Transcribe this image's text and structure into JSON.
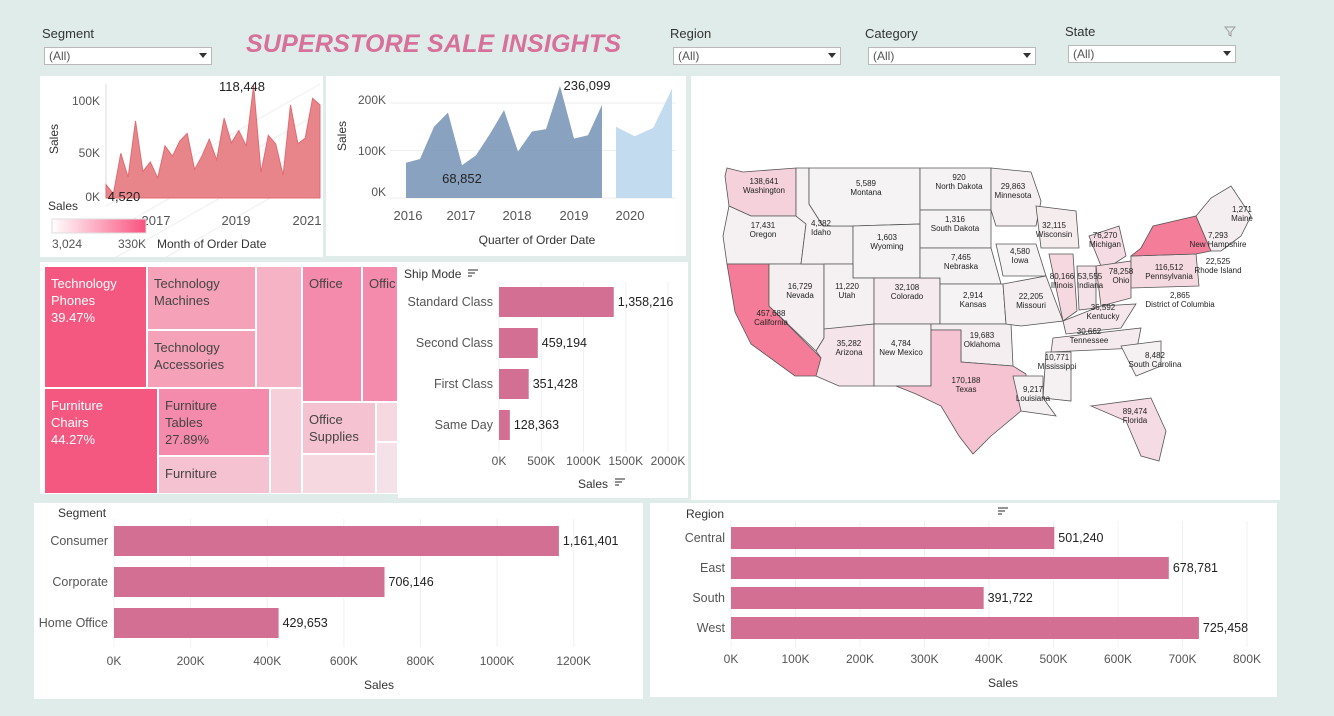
{
  "title": "SUPERSTORE SALE INSIGHTS",
  "filters": [
    {
      "label": "Segment",
      "value": "(All)"
    },
    {
      "label": "Region",
      "value": "(All)"
    },
    {
      "label": "Category",
      "value": "(All)"
    },
    {
      "label": "State",
      "value": "(All)"
    }
  ],
  "monthly": {
    "ylabel": "Sales",
    "xlabel": "Month of Order Date",
    "yticks": [
      "100K",
      "50K",
      "0K"
    ],
    "xticks": [
      "2017",
      "2019",
      "2021"
    ],
    "max_label": "118,448",
    "min_label": "4,520",
    "legend_title": "Sales",
    "legend_min": "3,024",
    "legend_max": "330K",
    "color": "#e8858a"
  },
  "quarterly": {
    "ylabel": "Sales",
    "xlabel": "Quarter of Order Date",
    "yticks": [
      "200K",
      "100K",
      "0K"
    ],
    "xticks": [
      "2016",
      "2017",
      "2018",
      "2019",
      "2020"
    ],
    "max_label": "236,099",
    "min_label": "68,852",
    "color": "#7492b5",
    "forecast_color": "#c2dbef"
  },
  "treemap": {
    "cells": [
      {
        "category": "Technology",
        "sub": "Phones",
        "pct": "39.47%"
      },
      {
        "category": "Technology",
        "sub": "Machines"
      },
      {
        "category": "Technology",
        "sub": "Accessories"
      },
      {
        "category": "Office",
        "sub": ""
      },
      {
        "category": "Offic",
        "sub": ""
      },
      {
        "category": "Furniture",
        "sub": "Chairs",
        "pct": "44.27%"
      },
      {
        "category": "Furniture",
        "sub": "Tables",
        "pct": "27.89%"
      },
      {
        "category": "Furniture",
        "sub": ""
      },
      {
        "category": "Office",
        "sub": "Supplies"
      }
    ]
  },
  "ship_mode": {
    "header": "Ship Mode",
    "axis_title": "Sales",
    "xticks": [
      "0K",
      "500K",
      "1000K",
      "1500K",
      "2000K"
    ],
    "color": "#d46f94"
  },
  "map": {
    "states": [
      {
        "name": "Washington",
        "value": "138,641"
      },
      {
        "name": "Oregon",
        "value": "17,431"
      },
      {
        "name": "California",
        "value": "457,688"
      },
      {
        "name": "Nevada",
        "value": "16,729"
      },
      {
        "name": "Idaho",
        "value": "4,382"
      },
      {
        "name": "Montana",
        "value": "5,589"
      },
      {
        "name": "Wyoming",
        "value": "1,603"
      },
      {
        "name": "Utah",
        "value": "11,220"
      },
      {
        "name": "Arizona",
        "value": "35,282"
      },
      {
        "name": "Colorado",
        "value": "32,108"
      },
      {
        "name": "New Mexico",
        "value": "4,784"
      },
      {
        "name": "North Dakota",
        "value": "920"
      },
      {
        "name": "South Dakota",
        "value": "1,316"
      },
      {
        "name": "Nebraska",
        "value": "7,465"
      },
      {
        "name": "Kansas",
        "value": "2,914"
      },
      {
        "name": "Oklahoma",
        "value": "19,683"
      },
      {
        "name": "Texas",
        "value": "170,188"
      },
      {
        "name": "Minnesota",
        "value": "29,863"
      },
      {
        "name": "Iowa",
        "value": "4,580"
      },
      {
        "name": "Missouri",
        "value": "22,205"
      },
      {
        "name": "Wisconsin",
        "value": "32,115"
      },
      {
        "name": "Illinois",
        "value": "80,166"
      },
      {
        "name": "Michigan",
        "value": "76,270"
      },
      {
        "name": "Indiana",
        "value": "53,555"
      },
      {
        "name": "Ohio",
        "value": "78,258"
      },
      {
        "name": "Kentucky",
        "value": "36,592"
      },
      {
        "name": "Tennessee",
        "value": "30,662"
      },
      {
        "name": "Mississippi",
        "value": "10,771"
      },
      {
        "name": "Louisiana",
        "value": "9,217"
      },
      {
        "name": "South Carolina",
        "value": "8,482"
      },
      {
        "name": "Florida",
        "value": "89,474"
      },
      {
        "name": "Pennsylvania",
        "value": "116,512"
      },
      {
        "name": "District of Columbia",
        "value": "2,865"
      },
      {
        "name": "New Hampshire",
        "value": "7,293"
      },
      {
        "name": "Maine",
        "value": "1,271"
      },
      {
        "name": "Rhode Island",
        "value": "22,525"
      }
    ]
  },
  "segment": {
    "header": "Segment",
    "axis_title": "Sales",
    "xticks": [
      "0K",
      "200K",
      "400K",
      "600K",
      "800K",
      "1000K",
      "1200K"
    ],
    "color": "#d46f94"
  },
  "region": {
    "header": "Region",
    "axis_title": "Sales",
    "xticks": [
      "0K",
      "100K",
      "200K",
      "300K",
      "400K",
      "500K",
      "600K",
      "700K",
      "800K"
    ],
    "color": "#d46f94"
  },
  "chart_data": [
    {
      "type": "area",
      "title": "",
      "xlabel": "Month of Order Date",
      "ylabel": "Sales",
      "ylim": [
        0,
        120000
      ],
      "x": [
        "2016-01",
        "2016-03",
        "2016-05",
        "2016-07",
        "2016-09",
        "2016-11",
        "2017-01",
        "2017-03",
        "2017-05",
        "2017-07",
        "2017-09",
        "2017-11",
        "2018-01",
        "2018-03",
        "2018-05",
        "2018-07",
        "2018-09",
        "2018-11",
        "2019-01",
        "2019-03",
        "2019-05",
        "2019-07",
        "2019-09",
        "2019-11",
        "2020-01",
        "2020-03",
        "2020-05",
        "2020-07",
        "2020-09",
        "2020-11"
      ],
      "values": [
        14000,
        4520,
        47000,
        22000,
        81000,
        28000,
        38000,
        21000,
        55000,
        44000,
        60000,
        68000,
        30000,
        44000,
        62000,
        40000,
        84000,
        58000,
        71000,
        55000,
        118448,
        27000,
        66000,
        57000,
        24000,
        98000,
        57000,
        63000,
        105000,
        98000
      ]
    },
    {
      "type": "area",
      "title": "",
      "xlabel": "Quarter of Order Date",
      "ylabel": "Sales",
      "ylim": [
        0,
        240000
      ],
      "x": [
        "2016 Q1",
        "2016 Q2",
        "2016 Q3",
        "2016 Q4",
        "2017 Q1",
        "2017 Q2",
        "2017 Q3",
        "2017 Q4",
        "2018 Q1",
        "2018 Q2",
        "2018 Q3",
        "2018 Q4",
        "2019 Q1",
        "2019 Q2",
        "2019 Q3",
        "2019 Q4"
      ],
      "values": [
        74000,
        82000,
        150000,
        180000,
        68852,
        90000,
        135000,
        185000,
        98000,
        140000,
        145000,
        236099,
        125000,
        132000,
        196000,
        0
      ],
      "forecast": {
        "x": [
          "2020 Q1",
          "2020 Q2",
          "2020 Q3",
          "2020 Q4"
        ],
        "values": [
          150000,
          130000,
          148000,
          230000
        ]
      }
    },
    {
      "type": "bar",
      "title": "",
      "xlabel": "Sales",
      "ylabel": "Ship Mode",
      "categories": [
        "Standard Class",
        "Second Class",
        "First Class",
        "Same Day"
      ],
      "values": [
        1358216,
        459194,
        351428,
        128363
      ],
      "labels": [
        "1,358,216",
        "459,194",
        "351,428",
        "128,363"
      ],
      "xlim": [
        0,
        2000000
      ]
    },
    {
      "type": "bar",
      "title": "",
      "xlabel": "Sales",
      "ylabel": "Segment",
      "categories": [
        "Consumer",
        "Corporate",
        "Home Office"
      ],
      "values": [
        1161401,
        706146,
        429653
      ],
      "labels": [
        "1,161,401",
        "706,146",
        "429,653"
      ],
      "xlim": [
        0,
        1300000
      ]
    },
    {
      "type": "bar",
      "title": "",
      "xlabel": "Sales",
      "ylabel": "Region",
      "categories": [
        "Central",
        "East",
        "South",
        "West"
      ],
      "values": [
        501240,
        678781,
        391722,
        725458
      ],
      "labels": [
        "501,240",
        "678,781",
        "391,722",
        "725,458"
      ],
      "xlim": [
        0,
        800000
      ]
    }
  ]
}
